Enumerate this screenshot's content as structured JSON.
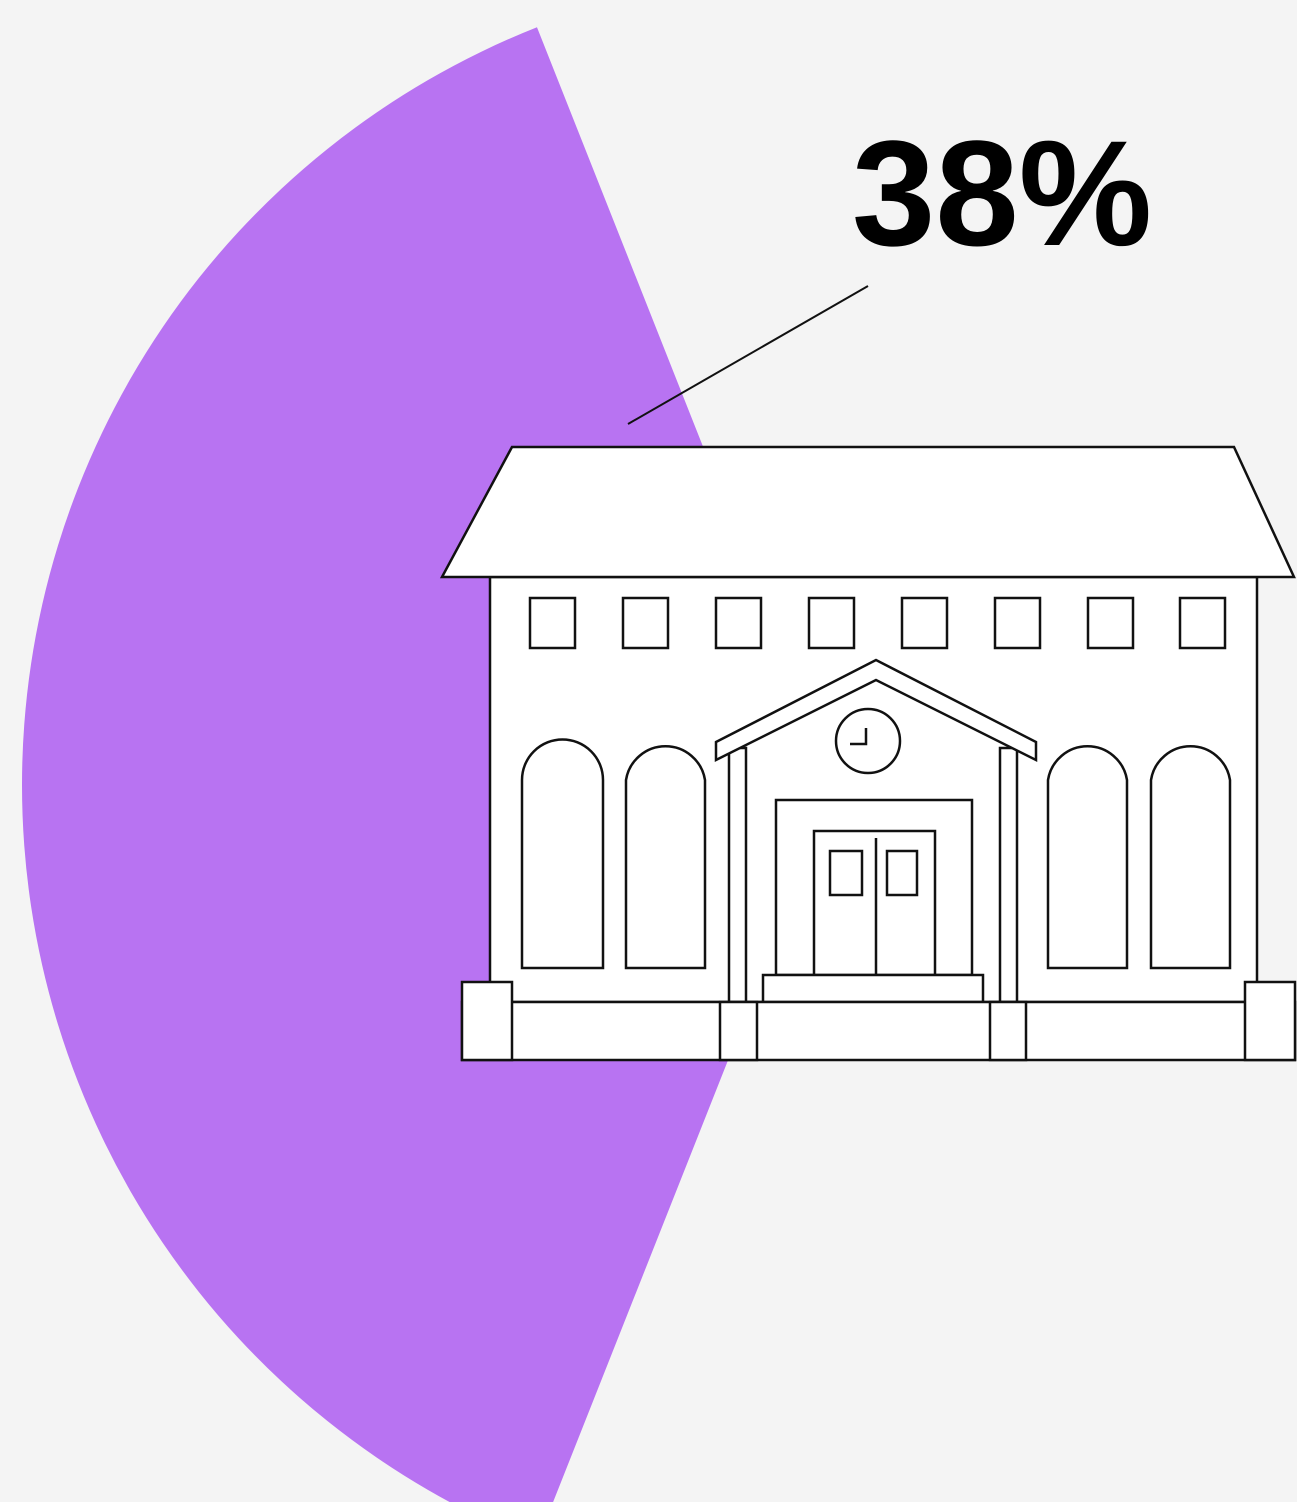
{
  "chart_data": {
    "type": "pie",
    "values": [
      38
    ],
    "value_labels": [
      "38%"
    ],
    "color": "#b873f2"
  }
}
